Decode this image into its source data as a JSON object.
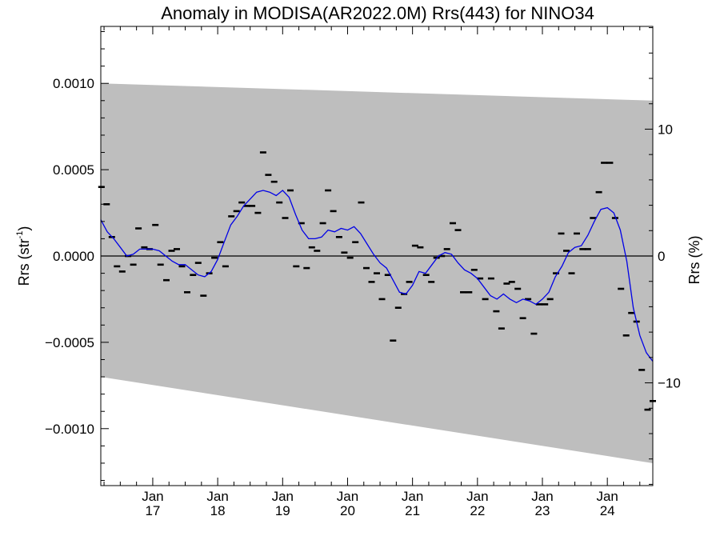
{
  "chart_data": {
    "type": "scatter",
    "title": "Anomaly in MODISA(AR2022.0M) Rrs(443) for NINO34",
    "ylabel_main": "Rrs (str",
    "ylabel_sup": "-1",
    "ylabel_close": ")",
    "y2label": "Rrs (%)",
    "xlim": [
      2016.2,
      2024.7
    ],
    "ylim": [
      -0.00133,
      0.00133
    ],
    "y2lim": [
      -18.1,
      18.1
    ],
    "yticks": [
      {
        "value": 0.001,
        "label": "0.0010"
      },
      {
        "value": 0.0005,
        "label": "0.0005"
      },
      {
        "value": 0.0,
        "label": "0.0000"
      },
      {
        "value": -0.0005,
        "label": "−0.0005"
      },
      {
        "value": -0.001,
        "label": "−0.0010"
      }
    ],
    "y2ticks": [
      {
        "value": 10,
        "label": "10"
      },
      {
        "value": 0,
        "label": "0"
      },
      {
        "value": -10,
        "label": "−10"
      }
    ],
    "xticks": [
      {
        "value": 2017.0,
        "month": "Jan",
        "year": "17"
      },
      {
        "value": 2018.0,
        "month": "Jan",
        "year": "18"
      },
      {
        "value": 2019.0,
        "month": "Jan",
        "year": "19"
      },
      {
        "value": 2020.0,
        "month": "Jan",
        "year": "20"
      },
      {
        "value": 2021.0,
        "month": "Jan",
        "year": "21"
      },
      {
        "value": 2022.0,
        "month": "Jan",
        "year": "22"
      },
      {
        "value": 2023.0,
        "month": "Jan",
        "year": "23"
      },
      {
        "value": 2024.0,
        "month": "Jan",
        "year": "24"
      }
    ],
    "band": {
      "color": "#bebebe",
      "upper": [
        [
          2016.2,
          0.001
        ],
        [
          2024.7,
          0.0009
        ]
      ],
      "lower": [
        [
          2016.2,
          -0.0007
        ],
        [
          2024.7,
          -0.0012
        ]
      ]
    },
    "zero_line": true,
    "series": [
      {
        "kind": "monthly",
        "color": "#000000",
        "points": [
          [
            2016.21,
            0.0004
          ],
          [
            2016.29,
            0.0003
          ],
          [
            2016.37,
            0.00011
          ],
          [
            2016.45,
            -6e-05
          ],
          [
            2016.53,
            -9e-05
          ],
          [
            2016.62,
            0.0
          ],
          [
            2016.7,
            -5e-05
          ],
          [
            2016.78,
            0.00016
          ],
          [
            2016.87,
            5e-05
          ],
          [
            2016.95,
            4e-05
          ],
          [
            2017.04,
            0.00018
          ],
          [
            2017.12,
            -5e-05
          ],
          [
            2017.21,
            -0.00014
          ],
          [
            2017.29,
            3e-05
          ],
          [
            2017.37,
            4e-05
          ],
          [
            2017.45,
            -6e-05
          ],
          [
            2017.53,
            -0.00021
          ],
          [
            2017.62,
            -0.00011
          ],
          [
            2017.7,
            -4e-05
          ],
          [
            2017.78,
            -0.00023
          ],
          [
            2017.87,
            -0.0001
          ],
          [
            2017.95,
            -1e-05
          ],
          [
            2018.04,
            8e-05
          ],
          [
            2018.12,
            -6e-05
          ],
          [
            2018.21,
            0.00023
          ],
          [
            2018.29,
            0.00026
          ],
          [
            2018.37,
            0.00031
          ],
          [
            2018.45,
            0.00029
          ],
          [
            2018.53,
            0.00029
          ],
          [
            2018.62,
            0.00025
          ],
          [
            2018.7,
            0.0006
          ],
          [
            2018.78,
            0.00047
          ],
          [
            2018.87,
            0.00043
          ],
          [
            2018.95,
            0.00031
          ],
          [
            2019.04,
            0.00022
          ],
          [
            2019.12,
            0.00038
          ],
          [
            2019.21,
            -6e-05
          ],
          [
            2019.29,
            0.00019
          ],
          [
            2019.37,
            -7e-05
          ],
          [
            2019.45,
            5e-05
          ],
          [
            2019.53,
            3e-05
          ],
          [
            2019.62,
            0.00019
          ],
          [
            2019.7,
            0.00038
          ],
          [
            2019.78,
            0.00026
          ],
          [
            2019.87,
            0.00011
          ],
          [
            2019.95,
            2e-05
          ],
          [
            2020.04,
            -1e-05
          ],
          [
            2020.12,
            8e-05
          ],
          [
            2020.21,
            0.00031
          ],
          [
            2020.29,
            -7e-05
          ],
          [
            2020.37,
            -0.00015
          ],
          [
            2020.45,
            -0.0001
          ],
          [
            2020.53,
            -0.00025
          ],
          [
            2020.62,
            -0.00011
          ],
          [
            2020.7,
            -0.00049
          ],
          [
            2020.78,
            -0.0003
          ],
          [
            2020.87,
            -0.00022
          ],
          [
            2020.95,
            -0.00015
          ],
          [
            2021.04,
            6e-05
          ],
          [
            2021.12,
            5e-05
          ],
          [
            2021.21,
            -0.00011
          ],
          [
            2021.29,
            -0.00015
          ],
          [
            2021.37,
            -1e-05
          ],
          [
            2021.45,
            0.0
          ],
          [
            2021.53,
            4e-05
          ],
          [
            2021.62,
            0.00019
          ],
          [
            2021.7,
            0.00015
          ],
          [
            2021.78,
            -0.00021
          ],
          [
            2021.87,
            -0.00021
          ],
          [
            2021.95,
            -8e-05
          ],
          [
            2022.04,
            -0.00013
          ],
          [
            2022.12,
            -0.00025
          ],
          [
            2022.21,
            -0.00013
          ],
          [
            2022.29,
            -0.00032
          ],
          [
            2022.37,
            -0.00042
          ],
          [
            2022.45,
            -0.00016
          ],
          [
            2022.53,
            -0.00015
          ],
          [
            2022.62,
            -0.00019
          ],
          [
            2022.7,
            -0.00036
          ],
          [
            2022.78,
            -0.00025
          ],
          [
            2022.87,
            -0.00045
          ],
          [
            2022.95,
            -0.00028
          ],
          [
            2023.04,
            -0.00028
          ],
          [
            2023.12,
            -0.00025
          ],
          [
            2023.21,
            -0.0001
          ],
          [
            2023.29,
            0.00013
          ],
          [
            2023.37,
            3e-05
          ],
          [
            2023.45,
            -0.0001
          ],
          [
            2023.53,
            0.00013
          ],
          [
            2023.62,
            4e-05
          ],
          [
            2023.7,
            4e-05
          ],
          [
            2023.78,
            0.00022
          ],
          [
            2023.87,
            0.00037
          ],
          [
            2023.95,
            0.00054
          ],
          [
            2024.04,
            0.00054
          ],
          [
            2024.12,
            0.00022
          ],
          [
            2024.21,
            -0.00019
          ],
          [
            2024.29,
            -0.00046
          ],
          [
            2024.37,
            -0.00033
          ],
          [
            2024.45,
            -0.00038
          ],
          [
            2024.53,
            -0.00066
          ],
          [
            2024.62,
            -0.00089
          ],
          [
            2024.7,
            -0.00084
          ]
        ]
      },
      {
        "kind": "smoothed",
        "color": "#0000e6",
        "points": [
          [
            2016.2,
            0.00021
          ],
          [
            2016.3,
            0.00014
          ],
          [
            2016.4,
            0.0001
          ],
          [
            2016.5,
            5e-05
          ],
          [
            2016.6,
            0.0
          ],
          [
            2016.7,
            1e-05
          ],
          [
            2016.8,
            4e-05
          ],
          [
            2016.9,
            4e-05
          ],
          [
            2017.0,
            4e-05
          ],
          [
            2017.1,
            3e-05
          ],
          [
            2017.2,
            0.0
          ],
          [
            2017.3,
            -3e-05
          ],
          [
            2017.4,
            -5e-05
          ],
          [
            2017.5,
            -5e-05
          ],
          [
            2017.6,
            -8e-05
          ],
          [
            2017.7,
            -0.00011
          ],
          [
            2017.8,
            -0.00012
          ],
          [
            2017.9,
            -9e-05
          ],
          [
            2018.0,
            -2e-05
          ],
          [
            2018.1,
            8e-05
          ],
          [
            2018.2,
            0.00018
          ],
          [
            2018.3,
            0.00023
          ],
          [
            2018.4,
            0.00029
          ],
          [
            2018.5,
            0.00033
          ],
          [
            2018.6,
            0.00037
          ],
          [
            2018.7,
            0.00038
          ],
          [
            2018.8,
            0.00037
          ],
          [
            2018.9,
            0.00035
          ],
          [
            2019.0,
            0.00038
          ],
          [
            2019.1,
            0.00034
          ],
          [
            2019.2,
            0.00024
          ],
          [
            2019.3,
            0.00015
          ],
          [
            2019.4,
            0.0001
          ],
          [
            2019.5,
            0.0001
          ],
          [
            2019.6,
            0.00011
          ],
          [
            2019.7,
            0.00015
          ],
          [
            2019.8,
            0.00014
          ],
          [
            2019.9,
            0.00016
          ],
          [
            2020.0,
            0.00015
          ],
          [
            2020.1,
            0.00017
          ],
          [
            2020.2,
            0.00013
          ],
          [
            2020.3,
            7e-05
          ],
          [
            2020.4,
            1e-05
          ],
          [
            2020.5,
            -4e-05
          ],
          [
            2020.6,
            -7e-05
          ],
          [
            2020.7,
            -0.00014
          ],
          [
            2020.8,
            -0.00021
          ],
          [
            2020.9,
            -0.00022
          ],
          [
            2021.0,
            -0.00017
          ],
          [
            2021.1,
            -9e-05
          ],
          [
            2021.2,
            -0.0001
          ],
          [
            2021.3,
            -5e-05
          ],
          [
            2021.4,
            -0.0
          ],
          [
            2021.5,
            2e-05
          ],
          [
            2021.6,
            1e-05
          ],
          [
            2021.7,
            -4e-05
          ],
          [
            2021.8,
            -8e-05
          ],
          [
            2021.9,
            -0.0001
          ],
          [
            2022.0,
            -0.00013
          ],
          [
            2022.1,
            -0.00018
          ],
          [
            2022.2,
            -0.00023
          ],
          [
            2022.3,
            -0.00025
          ],
          [
            2022.4,
            -0.00022
          ],
          [
            2022.5,
            -0.00025
          ],
          [
            2022.6,
            -0.00027
          ],
          [
            2022.7,
            -0.00025
          ],
          [
            2022.8,
            -0.00026
          ],
          [
            2022.9,
            -0.00028
          ],
          [
            2023.0,
            -0.00025
          ],
          [
            2023.1,
            -0.00021
          ],
          [
            2023.2,
            -0.00012
          ],
          [
            2023.3,
            -6e-05
          ],
          [
            2023.4,
            2e-05
          ],
          [
            2023.5,
            5e-05
          ],
          [
            2023.6,
            6e-05
          ],
          [
            2023.7,
            0.00012
          ],
          [
            2023.8,
            0.0002
          ],
          [
            2023.9,
            0.00027
          ],
          [
            2024.0,
            0.00028
          ],
          [
            2024.1,
            0.00025
          ],
          [
            2024.2,
            0.00015
          ],
          [
            2024.3,
            -3e-05
          ],
          [
            2024.4,
            -0.0003
          ],
          [
            2024.5,
            -0.00046
          ],
          [
            2024.6,
            -0.00056
          ],
          [
            2024.7,
            -0.00061
          ]
        ]
      }
    ]
  }
}
